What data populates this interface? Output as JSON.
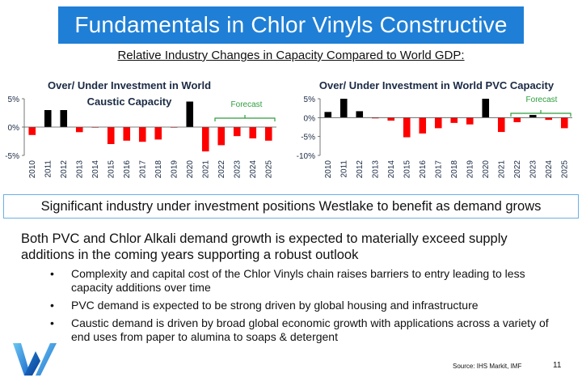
{
  "title": "Fundamentals in Chlor Vinyls Constructive",
  "subtitle": "Relative Industry Changes in Capacity Compared to World GDP:",
  "callout": "Significant industry under investment positions Westlake to benefit as demand grows",
  "main_text": "Both PVC and Chlor Alkali demand growth is expected to materially exceed supply additions in the coming years supporting a robust outlook",
  "bullets": [
    "Complexity and capital cost of the Chlor Vinyls chain raises barriers to entry leading to less capacity additions over time",
    "PVC demand is expected to be strong driven by global housing and infrastructure",
    "Caustic demand is driven by broad global economic growth with applications across a variety of end uses from paper to alumina to soaps & detergent"
  ],
  "source": "Source: IHS Markit, IMF",
  "page_number": "11",
  "colors": {
    "title_bg": "#1f7fd6",
    "positive": "#000000",
    "negative": "#ff0000",
    "forecast": "#2e9e3e",
    "callout_border": "#6ab0e6"
  },
  "chart_data": [
    {
      "type": "bar",
      "title": "Over/ Under Investment in World Caustic Capacity",
      "annotation": "Forecast",
      "forecast_range": [
        "2022",
        "2025"
      ],
      "categories": [
        "2010",
        "2011",
        "2012",
        "2013",
        "2014",
        "2015",
        "2016",
        "2017",
        "2018",
        "2019",
        "2020",
        "2021",
        "2022",
        "2023",
        "2024",
        "2025"
      ],
      "values": [
        -1.4,
        3.0,
        3.0,
        -0.9,
        -0.1,
        -3.0,
        -2.4,
        -2.6,
        -2.2,
        -0.1,
        4.5,
        -4.3,
        -3.2,
        -1.6,
        -2.0,
        -2.4
      ],
      "ylim": [
        -5,
        5
      ],
      "yticks": [
        "5%",
        "0%",
        "-5%"
      ],
      "yticks_values": [
        5,
        0,
        -5
      ]
    },
    {
      "type": "bar",
      "title": "Over/ Under Investment in World PVC Capacity",
      "annotation": "Forecast",
      "forecast_range": [
        "2022",
        "2025"
      ],
      "categories": [
        "2010",
        "2011",
        "2012",
        "2013",
        "2014",
        "2015",
        "2016",
        "2017",
        "2018",
        "2019",
        "2020",
        "2021",
        "2022",
        "2023",
        "2024",
        "2025"
      ],
      "values": [
        1.5,
        5.0,
        1.7,
        -0.2,
        -0.8,
        -5.2,
        -4.2,
        -2.8,
        -1.4,
        -1.8,
        5.0,
        -3.8,
        -1.2,
        0.7,
        -0.6,
        -2.8
      ],
      "ylim": [
        -10,
        5
      ],
      "yticks": [
        "5%",
        "0%",
        "-5%",
        "-10%"
      ],
      "yticks_values": [
        5,
        0,
        -5,
        -10
      ]
    }
  ]
}
